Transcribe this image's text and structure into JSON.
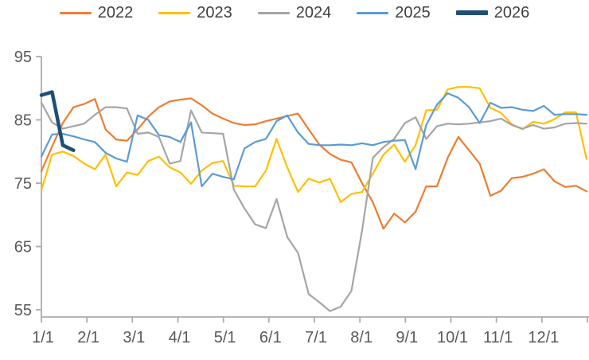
{
  "chart_data": {
    "type": "line",
    "title": "",
    "legend_position": "top",
    "grid": false,
    "background": "#FFFFFF",
    "x_axis": {
      "tick_labels": [
        "1/1",
        "2/1",
        "3/1",
        "4/1",
        "5/1",
        "6/1",
        "7/1",
        "8/1",
        "9/1",
        "10/1",
        "11/1",
        "12/1"
      ],
      "unit": "month/day of year",
      "points_per_full_series": 52
    },
    "y_axis": {
      "ticks": [
        95,
        85,
        75,
        65,
        55
      ],
      "range": [
        53.9,
        95
      ]
    },
    "series": [
      {
        "name": "2022",
        "color": "#ED7D31",
        "line_width": 2.2,
        "values": [
          76.9,
          80.8,
          84.5,
          87.0,
          87.5,
          88.3,
          83.5,
          81.9,
          81.7,
          83.5,
          85.5,
          87.0,
          87.9,
          88.2,
          88.4,
          87.3,
          86.0,
          85.2,
          84.5,
          84.2,
          84.3,
          84.8,
          85.2,
          85.6,
          86.0,
          83.5,
          81.1,
          79.6,
          78.7,
          78.3,
          75.0,
          72.0,
          67.8,
          70.2,
          68.8,
          70.5,
          74.5,
          74.5,
          79.0,
          82.3,
          80.2,
          78.1,
          73.0,
          73.8,
          75.8,
          76.0,
          76.5,
          77.2,
          75.3,
          74.4,
          74.6,
          73.7
        ]
      },
      {
        "name": "2023",
        "color": "#FFC000",
        "line_width": 2.2,
        "values": [
          73.9,
          79.5,
          80.0,
          79.3,
          78.1,
          77.2,
          79.5,
          74.5,
          76.7,
          76.3,
          78.5,
          79.2,
          77.5,
          76.7,
          74.9,
          77.0,
          78.2,
          78.5,
          74.6,
          74.5,
          74.5,
          77.0,
          82.0,
          77.5,
          73.6,
          75.7,
          75.1,
          75.7,
          72.0,
          73.3,
          73.6,
          76.5,
          79.5,
          81.1,
          78.4,
          81.0,
          86.5,
          86.6,
          89.8,
          90.2,
          90.2,
          90.0,
          86.9,
          86.1,
          84.3,
          83.5,
          84.7,
          84.4,
          85.1,
          86.2,
          86.2,
          78.8
        ]
      },
      {
        "name": "2024",
        "color": "#A5A5A5",
        "line_width": 2.2,
        "values": [
          87.7,
          84.6,
          83.6,
          84.0,
          84.4,
          85.8,
          87.0,
          87.0,
          86.8,
          82.8,
          83.0,
          82.3,
          78.1,
          78.5,
          86.5,
          83.0,
          82.9,
          82.8,
          74.0,
          71.0,
          68.5,
          67.9,
          72.5,
          66.5,
          64.0,
          57.5,
          56.2,
          54.8,
          55.5,
          58.0,
          67.5,
          79.0,
          80.7,
          82.0,
          84.5,
          85.4,
          82.0,
          84.0,
          84.4,
          84.3,
          84.4,
          84.6,
          84.8,
          85.2,
          84.2,
          83.6,
          84.2,
          83.6,
          83.8,
          84.4,
          84.5,
          84.4
        ]
      },
      {
        "name": "2025",
        "color": "#5B9BD5",
        "line_width": 2.2,
        "values": [
          79.2,
          82.7,
          82.8,
          82.4,
          81.9,
          81.5,
          79.8,
          78.9,
          78.4,
          85.7,
          85.0,
          82.6,
          82.3,
          81.5,
          84.6,
          74.5,
          76.5,
          76.0,
          75.6,
          80.5,
          81.5,
          82.0,
          84.8,
          85.7,
          83.0,
          81.2,
          81.0,
          81.0,
          81.1,
          81.0,
          81.3,
          81.0,
          81.5,
          81.7,
          81.8,
          77.2,
          84.2,
          87.4,
          89.2,
          88.5,
          87.0,
          84.5,
          87.7,
          86.9,
          87.0,
          86.6,
          86.4,
          87.2,
          85.8,
          85.9,
          85.9,
          85.8
        ]
      },
      {
        "name": "2026",
        "color": "#1F4E79",
        "line_width": 4.5,
        "values": [
          88.9,
          89.4,
          81.0,
          80.2
        ]
      }
    ]
  },
  "colors": {
    "axis": "#ABABAB",
    "tick_text": "#595959",
    "legend_text": "#404040",
    "background": "#FFFFFF"
  }
}
